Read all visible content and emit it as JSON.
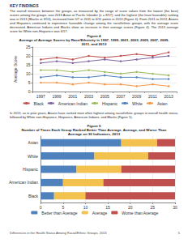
{
  "heading": "KEY FINDINGS",
  "paragraphs": [
    "The overall measure between the groups, as measured by the range of score values from the lowest (the best) scores among the groups, was 2013 Asian or Pacific Islander (n = 8/17), and the highest (the least favorable) ranking was in 2013 (Blacks at 3/13), increased from 5/7 in 2011 to 6/11 points in 2013 (Figure 4). From 2011 to 2013, Asians and Hispanics continued to experience favorable change among the racial/ethnic groups, with the average score decreased. American Indians and Blacks show an increase in their average scores (Figure 4). The 2013 average score for White non-Hispanics was 6/17.",
    "In 2013, as in prior years, Asians have ranked most often highest among racial/ethnic groups in overall health status, followed by White non-Hispanics, Hispanics, American Indians, and Blacks (Figure 5)."
  ],
  "chart_data": [
    {
      "type": "line",
      "title": "Figure 4\nAverage of Average Scores by Race/Ethnicity in 1997, 1999, 2001, 2003, 2005, 2007, 2009, 2011, and 2013",
      "ylabel": "Average Score",
      "categories": [
        "1997",
        "1999",
        "2001",
        "2003",
        "2005",
        "2007",
        "2009",
        "2011",
        "2013"
      ],
      "series": [
        {
          "name": "Black",
          "color": "#c0504d",
          "values": [
            18,
            19,
            18,
            20,
            19,
            20,
            21,
            20,
            22
          ]
        },
        {
          "name": "American Indian",
          "color": "#8064a2",
          "values": [
            16,
            17,
            16,
            17,
            18,
            17,
            18,
            19,
            20
          ]
        },
        {
          "name": "Hispanic",
          "color": "#9bbb59",
          "values": [
            12,
            12,
            11,
            12,
            11,
            10,
            11,
            10,
            9
          ]
        },
        {
          "name": "White",
          "color": "#4f81bd",
          "values": [
            8,
            9,
            8,
            8,
            9,
            8,
            8,
            7,
            7
          ]
        },
        {
          "name": "Asian",
          "color": "#f79646",
          "values": [
            5,
            5,
            4,
            5,
            4,
            4,
            3,
            4,
            3
          ]
        }
      ],
      "ylim": [
        0,
        25
      ],
      "yticks": [
        0,
        5,
        10,
        15,
        20,
        25
      ],
      "grid": true,
      "legend": "bottom",
      "marker": "circle"
    },
    {
      "type": "bar",
      "title": "Figure 5\nNumber of Times Each Group Ranked Better Than Average, Average, and Worse Than Average on 30 Indicators, 2013",
      "orientation": "horizontal",
      "stacked": true,
      "categories": [
        "Asian",
        "White",
        "Hispanic",
        "American Indian",
        "Black"
      ],
      "series": [
        {
          "name": "Better than Average",
          "color": "#4f81bd",
          "values": [
            18,
            12,
            8,
            5,
            3
          ]
        },
        {
          "name": "Average",
          "color": "#f2c14e",
          "values": [
            8,
            12,
            10,
            9,
            7
          ]
        },
        {
          "name": "Worse than Average",
          "color": "#c0504d",
          "values": [
            4,
            6,
            12,
            16,
            20
          ]
        }
      ],
      "xlim": [
        0,
        30
      ],
      "xticks": [
        0,
        5,
        10,
        15,
        20,
        25,
        30
      ],
      "grid": true,
      "legend": "bottom"
    }
  ],
  "footer": "Differences in the Health Status Among Racial/Ethnic Groups, 2013",
  "page_number": "5"
}
